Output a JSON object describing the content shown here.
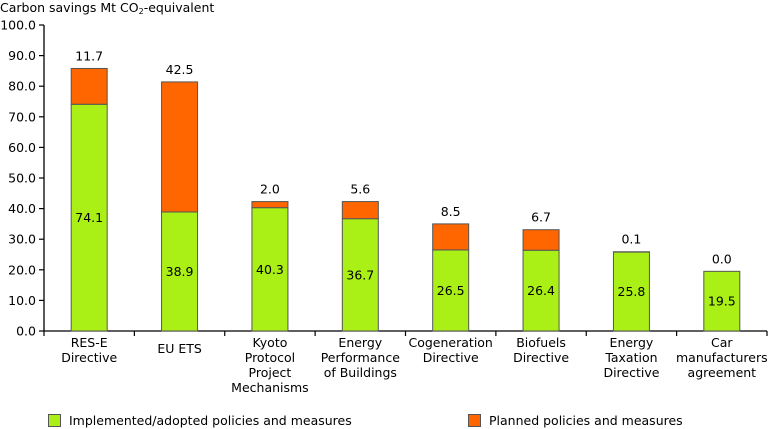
{
  "title": {
    "prefix": "Carbon savings Mt CO",
    "subscript": "2",
    "suffix": "-equivalent"
  },
  "colors": {
    "implemented": "#aaf016",
    "planned": "#ff6600",
    "border": "#555555",
    "axis": "#000000"
  },
  "legend": [
    {
      "key": "implemented",
      "label": "Implemented/adopted policies and measures"
    },
    {
      "key": "planned",
      "label": "Planned policies and measures"
    }
  ],
  "chart_data": {
    "type": "bar",
    "stacked": true,
    "title": "Carbon savings Mt CO2-equivalent",
    "xlabel": "",
    "ylabel": "Carbon savings Mt CO2-equivalent",
    "ylim": [
      0,
      100
    ],
    "yticks": [
      "0.0",
      "10.0",
      "20.0",
      "30.0",
      "40.0",
      "50.0",
      "60.0",
      "70.0",
      "80.0",
      "90.0",
      "100.0"
    ],
    "ytick_values": [
      0,
      10,
      20,
      30,
      40,
      50,
      60,
      70,
      80,
      90,
      100
    ],
    "grid": false,
    "legend_position": "bottom",
    "categories": [
      [
        "RES-E",
        "Directive"
      ],
      [
        "EU ETS"
      ],
      [
        "Kyoto",
        "Protocol",
        "Project",
        "Mechanisms"
      ],
      [
        "Energy",
        "Performance",
        "of Buildings"
      ],
      [
        "Cogeneration",
        "Directive"
      ],
      [
        "Biofuels",
        "Directive"
      ],
      [
        "Energy",
        "Taxation",
        "Directive"
      ],
      [
        "Car",
        "manufacturers",
        "agreement"
      ]
    ],
    "series": [
      {
        "name": "Implemented/adopted policies and measures",
        "key": "implemented",
        "values": [
          74.1,
          38.9,
          40.3,
          36.7,
          26.5,
          26.4,
          25.8,
          19.5
        ],
        "labels": [
          "74.1",
          "38.9",
          "40.3",
          "36.7",
          "26.5",
          "26.4",
          "25.8",
          "19.5"
        ]
      },
      {
        "name": "Planned policies and measures",
        "key": "planned",
        "values": [
          11.7,
          42.5,
          2.0,
          5.6,
          8.5,
          6.7,
          0.1,
          0.0
        ],
        "labels": [
          "11.7",
          "42.5",
          "2.0",
          "5.6",
          "8.5",
          "6.7",
          "0.1",
          "0.0"
        ]
      }
    ]
  }
}
